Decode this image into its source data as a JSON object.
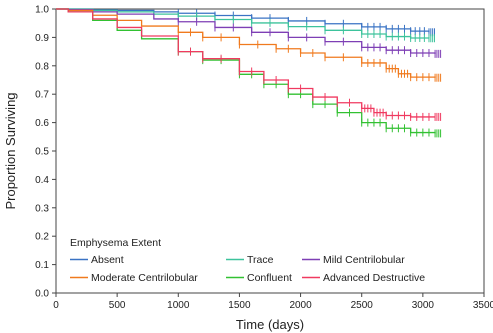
{
  "chart_data": {
    "type": "line",
    "title": "",
    "xlabel": "Time (days)",
    "ylabel": "Proportion Surviving",
    "xlim": [
      0,
      3500
    ],
    "ylim": [
      0.0,
      1.0
    ],
    "xticks": [
      "0",
      "500",
      "1000",
      "1500",
      "2000",
      "2500",
      "3000",
      "3500"
    ],
    "yticks": [
      "0.0",
      "0.1",
      "0.2",
      "0.3",
      "0.4",
      "0.5",
      "0.6",
      "0.7",
      "0.8",
      "0.9",
      "1.0"
    ],
    "grid": false,
    "legend": {
      "title": "Emphysema Extent",
      "placement": "bottom-left"
    },
    "series": [
      {
        "name": "Absent",
        "color": "#3a73c4",
        "x": [
          0,
          100,
          300,
          500,
          800,
          1000,
          1300,
          1600,
          1900,
          2200,
          2500,
          2700,
          2900,
          3050
        ],
        "y": [
          1.0,
          1.0,
          0.997,
          0.995,
          0.99,
          0.985,
          0.977,
          0.968,
          0.958,
          0.948,
          0.937,
          0.93,
          0.922,
          0.918
        ]
      },
      {
        "name": "Trace",
        "color": "#3dc39c",
        "x": [
          0,
          100,
          300,
          500,
          800,
          1000,
          1300,
          1600,
          1900,
          2200,
          2500,
          2700,
          2900,
          3050
        ],
        "y": [
          1.0,
          1.0,
          0.995,
          0.99,
          0.982,
          0.975,
          0.963,
          0.951,
          0.938,
          0.925,
          0.912,
          0.903,
          0.898,
          0.897
        ]
      },
      {
        "name": "Mild Centrilobular",
        "color": "#7e3fb5",
        "x": [
          0,
          100,
          300,
          500,
          800,
          1000,
          1300,
          1600,
          1900,
          2200,
          2500,
          2700,
          2900,
          3100
        ],
        "y": [
          1.0,
          0.998,
          0.99,
          0.982,
          0.965,
          0.955,
          0.935,
          0.918,
          0.9,
          0.885,
          0.865,
          0.855,
          0.845,
          0.842
        ]
      },
      {
        "name": "Moderate Centrilobular",
        "color": "#f07a1e",
        "x": [
          0,
          100,
          300,
          500,
          700,
          1000,
          1200,
          1500,
          1800,
          2000,
          2200,
          2500,
          2700,
          2800,
          2900,
          3100
        ],
        "y": [
          1.0,
          0.995,
          0.978,
          0.96,
          0.94,
          0.918,
          0.9,
          0.875,
          0.86,
          0.845,
          0.83,
          0.81,
          0.79,
          0.772,
          0.76,
          0.758
        ]
      },
      {
        "name": "Confluent",
        "color": "#32c132",
        "x": [
          0,
          100,
          300,
          500,
          700,
          1000,
          1200,
          1500,
          1700,
          1900,
          2100,
          2300,
          2500,
          2700,
          2900,
          3100
        ],
        "y": [
          1.0,
          0.99,
          0.96,
          0.925,
          0.895,
          0.85,
          0.82,
          0.77,
          0.735,
          0.7,
          0.665,
          0.635,
          0.6,
          0.58,
          0.565,
          0.562
        ]
      },
      {
        "name": "Advanced Destructive",
        "color": "#f03a60",
        "x": [
          0,
          100,
          300,
          500,
          700,
          1000,
          1200,
          1500,
          1700,
          1900,
          2100,
          2300,
          2500,
          2600,
          2700,
          2900,
          3100
        ],
        "y": [
          1.0,
          0.99,
          0.965,
          0.935,
          0.905,
          0.85,
          0.825,
          0.78,
          0.75,
          0.72,
          0.69,
          0.67,
          0.65,
          0.635,
          0.625,
          0.62,
          0.62
        ]
      }
    ]
  }
}
